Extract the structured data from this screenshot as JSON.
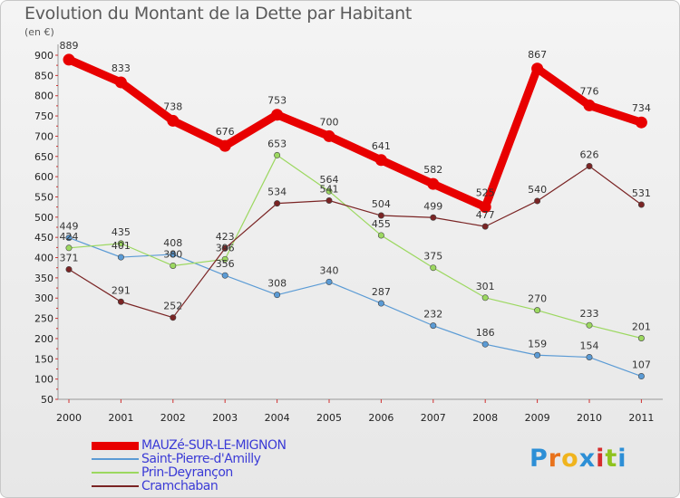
{
  "title": "Evolution du Montant de la Dette par Habitant",
  "unit": "(en €)",
  "logo": {
    "text": "Proxiti",
    "letters": [
      "P",
      "r",
      "o",
      "x",
      "i",
      "t",
      "i"
    ],
    "colors": [
      "#2d8fd6",
      "#e8721c",
      "#f0b41e",
      "#2d8fd6",
      "#d62d2d",
      "#8fc31f",
      "#2d8fd6"
    ]
  },
  "chart_data": {
    "type": "line",
    "title": "Evolution du Montant de la Dette par Habitant",
    "ylabel": "(en €)",
    "xlabel": "",
    "x": [
      "2000",
      "2001",
      "2002",
      "2003",
      "2004",
      "2005",
      "2006",
      "2007",
      "2008",
      "2009",
      "2010",
      "2011"
    ],
    "ylim": [
      50,
      900
    ],
    "yticks": [
      50,
      100,
      150,
      200,
      250,
      300,
      350,
      400,
      450,
      500,
      550,
      600,
      650,
      700,
      750,
      800,
      850,
      900
    ],
    "grid": false,
    "legend_placement": "bottom-left",
    "series": [
      {
        "name": "MAUZé-SUR-LE-MIGNON",
        "color": "#e80000",
        "width": 9,
        "values": [
          889,
          833,
          738,
          676,
          753,
          700,
          641,
          582,
          525,
          867,
          776,
          734
        ],
        "labels": [
          "889",
          "833",
          "738",
          "676",
          "753",
          "700",
          "641",
          "582",
          "525",
          "867",
          "776",
          "734"
        ]
      },
      {
        "name": "Saint-Pierre-d'Amilly",
        "color": "#5b9bd5",
        "width": 1.2,
        "values": [
          449,
          401,
          408,
          356,
          308,
          340,
          287,
          232,
          186,
          159,
          154,
          107
        ],
        "labels": [
          "449",
          "401",
          "408",
          "356",
          "308",
          "340",
          "287",
          "232",
          "186",
          "159",
          "154",
          "107"
        ]
      },
      {
        "name": "Prin-Deyrançon",
        "color": "#9cd860",
        "width": 1.2,
        "values": [
          424,
          435,
          380,
          396,
          653,
          564,
          455,
          375,
          301,
          270,
          233,
          201
        ],
        "labels": [
          "424",
          "435",
          "380",
          "396",
          "653",
          "564",
          "455",
          "375",
          "301",
          "270",
          "233",
          "201"
        ]
      },
      {
        "name": "Cramchaban",
        "color": "#7a2424",
        "width": 1.2,
        "values": [
          371,
          291,
          252,
          423,
          534,
          541,
          504,
          499,
          477,
          540,
          626,
          531
        ],
        "labels": [
          "371",
          "291",
          "252",
          "423",
          "534",
          "541",
          "504",
          "499",
          "477",
          "540",
          "626",
          "531"
        ]
      }
    ]
  }
}
